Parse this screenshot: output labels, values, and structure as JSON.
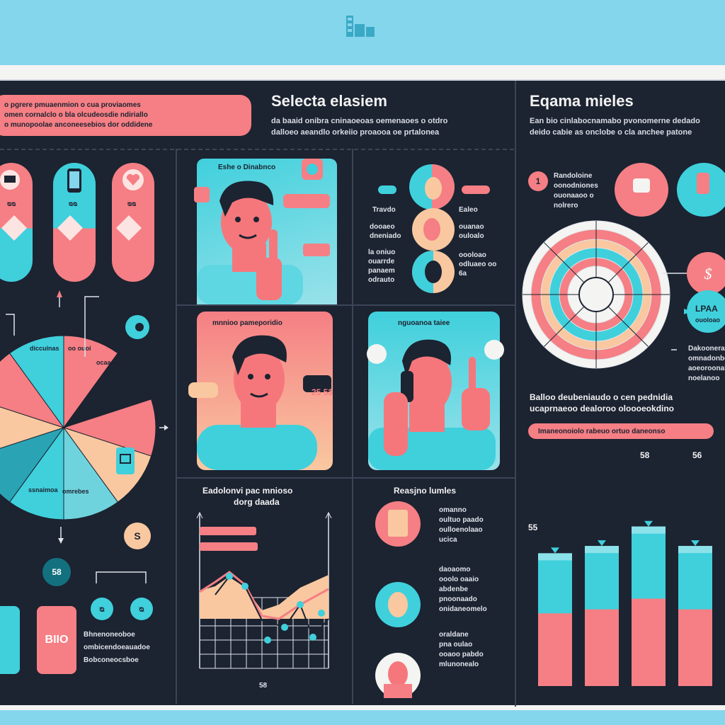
{
  "header": {
    "logo_icon": "building-icon"
  },
  "colors": {
    "pink": "#f57f84",
    "cyan": "#3fd0dc",
    "navy": "#1c2331",
    "sky": "#84d6ec",
    "peach": "#f9c8a0"
  },
  "left": {
    "banner_lines": [
      "o pgrere pmuaenmion o cua proviaomes",
      "omen cornalclo o bla olcudeosdie ndiriallo",
      "o munopoolae anconeesebios dor oddidene"
    ],
    "pills": [
      "ᴓᴓ",
      "ᴓᴓ",
      "ᴓᴓ"
    ],
    "pie_labels": [
      "diccuinas",
      "oo ouoi",
      "ocaanac",
      "ssnaimoa",
      "omrebes"
    ],
    "badge_a": "ᴓ",
    "badge_b": "S",
    "badge_c": "58",
    "tag_text": "BIIO",
    "legend": [
      "Bhnenoneoboe",
      "ombicendoeauadoe",
      "Bobconeocsboe"
    ]
  },
  "col2": {
    "title": "Selecta elasiem",
    "desc_lines": [
      "da baaid onibra cninaoeoas oemenaoes o otdro",
      "dalloeo aeandlo orkeiio proaooa oe prtalonea"
    ],
    "panel1_label": "Eshe o Dinabnco",
    "panel2_label": "mnnioo pameporidio",
    "bubble_num": "25 53",
    "chart_title": "Eadolonvi pac mnioso",
    "chart_sub": "dorg daada",
    "chart_foot": "58"
  },
  "col3": {
    "chips": [
      "ᴓᴓ",
      "ᴓᴓ"
    ],
    "left_labels": [
      "Travdo",
      "dooaeo dneniado",
      "la oniuo ouarrde panaem odrauto"
    ],
    "right_labels": [
      "Ealeo",
      "ouanao ouloalo",
      "oooloao odluaeo oo 6a"
    ],
    "panel_label": "nguoanoa taiee",
    "list_title": "Reasjno lumles",
    "items": [
      [
        "omanno",
        "oultuo paado",
        "oulloenolaao",
        "ucica"
      ],
      [
        "daoaomo",
        "ooolo oaaio",
        "abdenbe",
        "pnoonaado",
        "onidaneomelo"
      ],
      [
        "oraldane",
        "pna oulao",
        "ooaoo pabdo",
        "mlunonealo"
      ]
    ]
  },
  "col4": {
    "title": "Eqama mieles",
    "desc_lines": [
      "Ean bio cinlabocnamabo pvonomerne dedado",
      "deido cabie as onclobe o cla anchee patone"
    ],
    "num_badge": "1",
    "list_lines": [
      "Randoloine",
      "oonodniones",
      "ouonaaoo o",
      "nolrero"
    ],
    "right_badge": "LPAA",
    "right_badge_sub": "ouoloao",
    "side_notes": [
      "Dakoonera",
      "omnadonbo",
      "aoeoroonale",
      "noelanoo"
    ],
    "mid_lines": [
      "Balloo deubeniaudo o cen pednidia",
      "ucaprnaeoo dealoroo oloooeokdino"
    ],
    "bar_caption": "Imaneonoiolo rabeuo ortuo daneonso",
    "bar_values": [
      "55",
      "58",
      "56"
    ]
  },
  "chart_data": {
    "type": "bar",
    "categories": [
      "",
      "",
      "",
      ""
    ],
    "values": [
      55,
      58,
      66,
      58
    ],
    "title": "",
    "xlabel": "",
    "ylabel": ""
  }
}
